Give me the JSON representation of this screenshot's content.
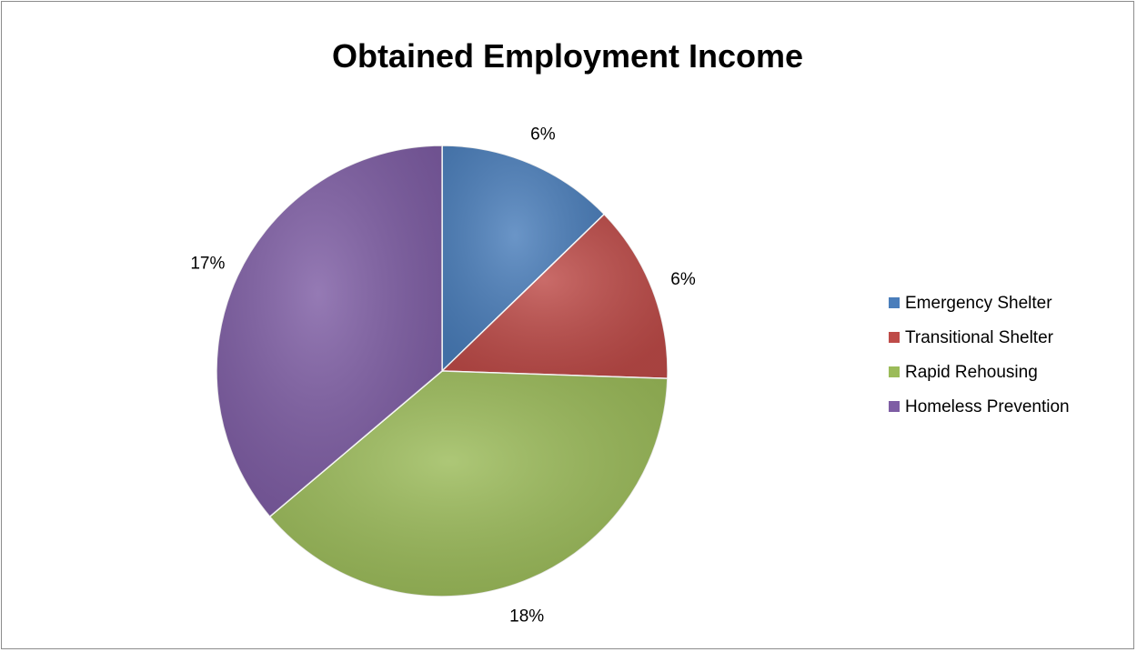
{
  "chart_data": {
    "type": "pie",
    "title": "Obtained Employment Income",
    "categories": [
      "Emergency Shelter",
      "Transitional Shelter",
      "Rapid Rehousing",
      "Homeless Prevention"
    ],
    "values": [
      6,
      6,
      18,
      17
    ],
    "value_labels": [
      "6%",
      "6%",
      "18%",
      "17%"
    ],
    "legend_position": "right",
    "colors": [
      "#4A7EBB",
      "#BE4B48",
      "#9BBB59",
      "#7E5DA4"
    ]
  }
}
